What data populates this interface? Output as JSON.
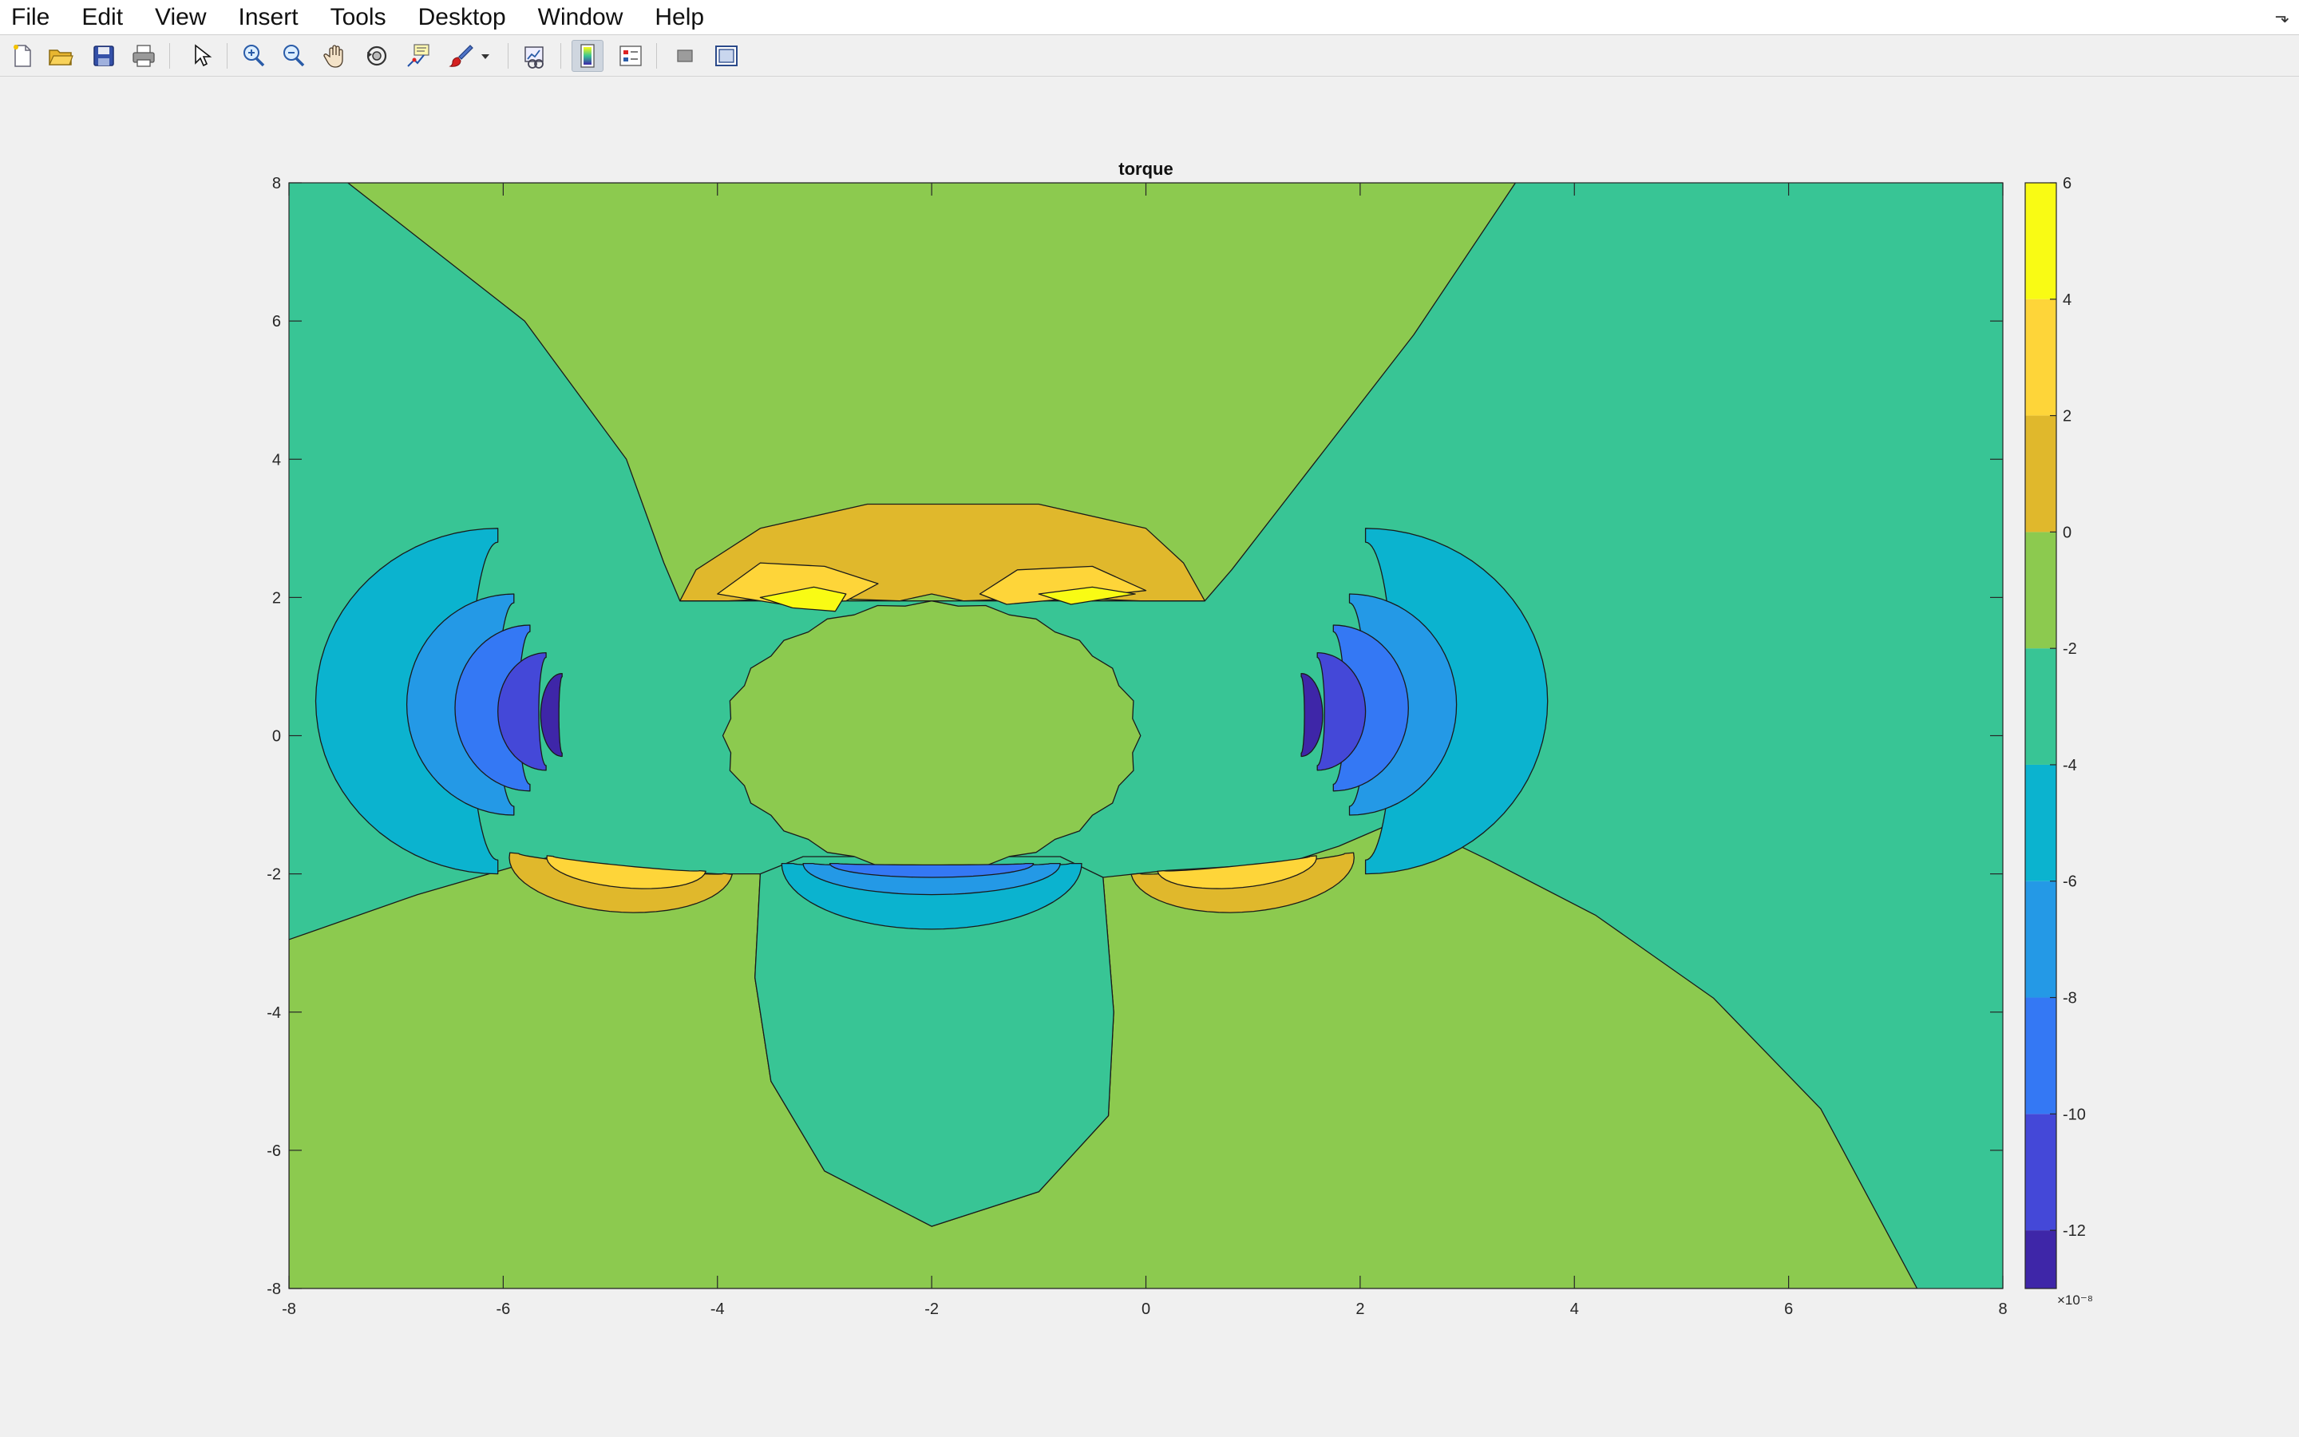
{
  "menubar": {
    "items": [
      "File",
      "Edit",
      "View",
      "Insert",
      "Tools",
      "Desktop",
      "Window",
      "Help"
    ]
  },
  "toolbar": {
    "buttons": [
      {
        "name": "new-figure-icon"
      },
      {
        "name": "open-file-icon"
      },
      {
        "name": "save-icon"
      },
      {
        "name": "print-icon"
      },
      {
        "name": "edit-plot-cursor-icon"
      },
      {
        "name": "zoom-in-icon"
      },
      {
        "name": "zoom-out-icon"
      },
      {
        "name": "pan-hand-icon"
      },
      {
        "name": "rotate-3d-icon"
      },
      {
        "name": "data-cursor-icon"
      },
      {
        "name": "brush-icon"
      },
      {
        "name": "brush-dropdown-icon"
      },
      {
        "name": "link-plot-icon"
      },
      {
        "name": "insert-colorbar-icon"
      },
      {
        "name": "insert-legend-icon"
      },
      {
        "name": "hide-plot-tools-icon"
      },
      {
        "name": "show-plot-tools-icon"
      }
    ]
  },
  "chart_data": {
    "type": "contour",
    "title": "torque",
    "xlabel": "",
    "ylabel": "",
    "xlim": [
      -8,
      8
    ],
    "ylim": [
      -8,
      8
    ],
    "xticks": [
      "-8",
      "-6",
      "-4",
      "-2",
      "0",
      "2",
      "4",
      "6",
      "8"
    ],
    "yticks": [
      "8",
      "6",
      "4",
      "2",
      "0",
      "-2",
      "-4",
      "-6",
      "-8"
    ],
    "colorbar": {
      "range": [
        -13,
        6
      ],
      "ticks": [
        "6",
        "4",
        "2",
        "0",
        "-2",
        "-4",
        "-6",
        "-8",
        "-10",
        "-12"
      ],
      "exponent_label": "×10⁻⁸",
      "colormap": "parula"
    },
    "contour_levels": [
      -13,
      -11,
      -9,
      -7,
      -5,
      -3,
      -1,
      1,
      3,
      5
    ],
    "fill_colors": {
      "level_-13": "#3e26a8",
      "level_-11": "#4448d8",
      "level_-9": "#3478f4",
      "level_-7": "#2499e6",
      "level_-5": "#0bb3cf",
      "level_-3": "#38c595",
      "level_-1": "#8cca4f",
      "level_1": "#e0b82c",
      "level_3": "#fed539",
      "level_5": "#f9fb14"
    },
    "grid": false
  }
}
